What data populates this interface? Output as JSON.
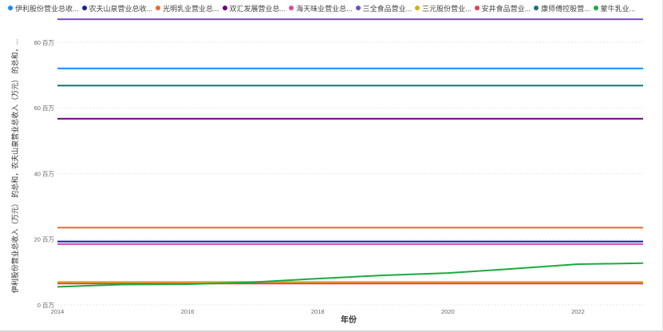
{
  "chart_data": {
    "type": "line",
    "xlabel": "年份",
    "ylabel": "伊利股份营业总收入（万元） 的总和，农夫山泉营业总收入（万元） 的总和，...",
    "x": [
      2014,
      2015,
      2016,
      2017,
      2018,
      2019,
      2020,
      2021,
      2022,
      2023
    ],
    "xlim": [
      2014,
      2023
    ],
    "x_ticks": [
      "2014",
      "2016",
      "2018",
      "2020",
      "2022"
    ],
    "ylim": [
      0,
      88000000
    ],
    "y_ticks": [
      {
        "value": 0,
        "label": "0 百万"
      },
      {
        "value": 20000000,
        "label": "20 百万"
      },
      {
        "value": 40000000,
        "label": "40 百万"
      },
      {
        "value": 60000000,
        "label": "60 百万"
      },
      {
        "value": 80000000,
        "label": "80 百万"
      }
    ],
    "grid": "horizontal",
    "legend_position": "top",
    "series": [
      {
        "name": "伊利股份营业总收...",
        "color": "#118dff",
        "values": [
          72000000,
          72000000,
          72000000,
          72000000,
          72000000,
          72000000,
          72000000,
          72000000,
          72000000,
          72000000
        ]
      },
      {
        "name": "农夫山泉营业总收...",
        "color": "#12239e",
        "values": [
          19300000,
          19300000,
          19300000,
          19300000,
          19300000,
          19300000,
          19300000,
          19300000,
          19300000,
          19300000
        ]
      },
      {
        "name": "光明乳业营业总...",
        "color": "#e66c37",
        "values": [
          23500000,
          23500000,
          23500000,
          23500000,
          23500000,
          23500000,
          23500000,
          23500000,
          23500000,
          23500000
        ]
      },
      {
        "name": "双汇发展营业总...",
        "color": "#6b007b",
        "values": [
          56700000,
          56700000,
          56700000,
          56700000,
          56700000,
          56700000,
          56700000,
          56700000,
          56700000,
          56700000
        ]
      },
      {
        "name": "海天味业营业总...",
        "color": "#e044a7",
        "values": [
          18500000,
          18500000,
          18500000,
          18500000,
          18500000,
          18500000,
          18500000,
          18500000,
          18500000,
          18500000
        ]
      },
      {
        "name": "三全食品营业...",
        "color": "#744ec2",
        "values": [
          87000000,
          87000000,
          87000000,
          87000000,
          87000000,
          87000000,
          87000000,
          87000000,
          87000000,
          87000000
        ]
      },
      {
        "name": "三元股份营业...",
        "color": "#d9b300",
        "values": [
          7000000,
          7000000,
          7000000,
          7000000,
          7000000,
          7000000,
          7000000,
          7000000,
          7000000,
          7000000
        ]
      },
      {
        "name": "安井食品营业...",
        "color": "#d64550",
        "values": [
          6500000,
          6500000,
          6500000,
          6500000,
          6500000,
          6500000,
          6500000,
          6500000,
          6500000,
          6500000
        ]
      },
      {
        "name": "康师傅控股营...",
        "color": "#197278",
        "values": [
          66800000,
          66800000,
          66800000,
          66800000,
          66800000,
          66800000,
          66800000,
          66800000,
          66800000,
          66800000
        ]
      },
      {
        "name": "蒙牛乳业...",
        "color": "#1aab40",
        "values": [
          5500000,
          6200000,
          6300000,
          6900000,
          8000000,
          9000000,
          9700000,
          11000000,
          12400000,
          12700000
        ]
      }
    ]
  }
}
